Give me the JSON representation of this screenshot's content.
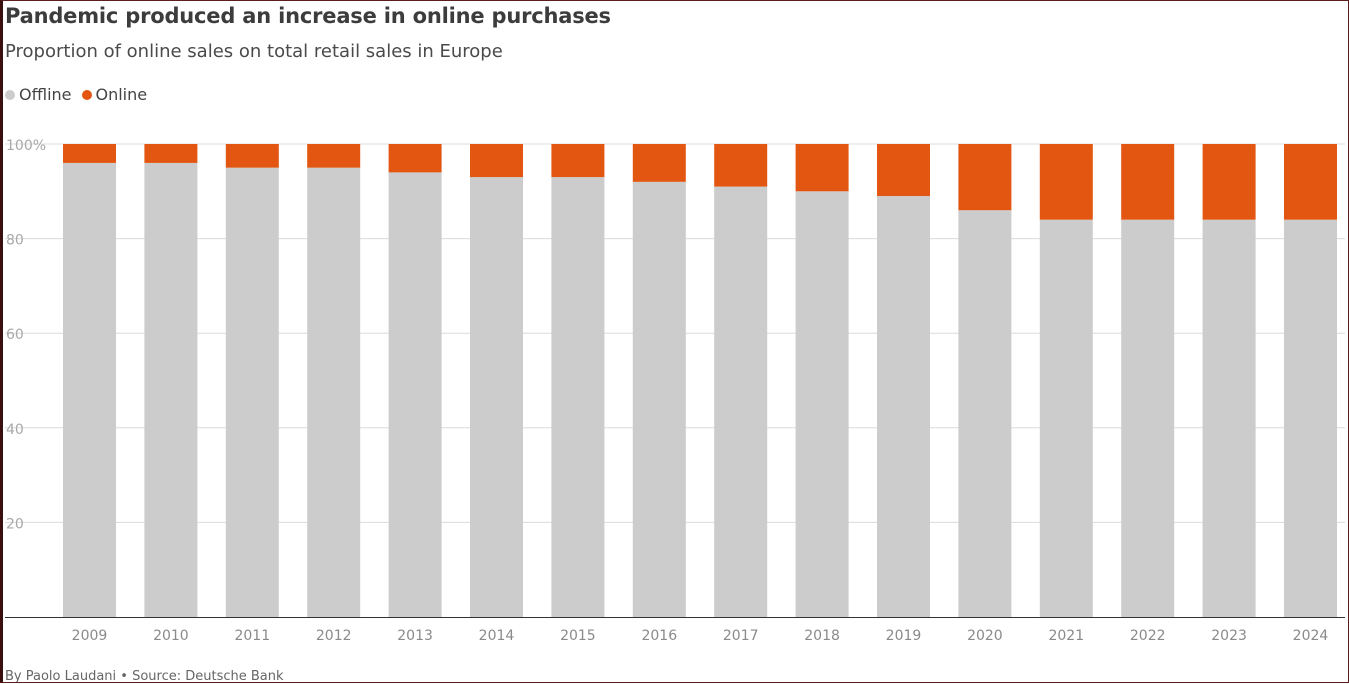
{
  "title": "Pandemic produced an increase in online purchases",
  "subtitle": "Proportion of online sales on total retail sales in Europe",
  "legend": [
    {
      "label": "Offline",
      "color": "#cccccc"
    },
    {
      "label": "Online",
      "color": "#e35612"
    }
  ],
  "source": "By Paolo Laudani • Source: Deutsche Bank",
  "chart_data": {
    "type": "bar",
    "stacked": true,
    "categories": [
      "2009",
      "2010",
      "2011",
      "2012",
      "2013",
      "2014",
      "2015",
      "2016",
      "2017",
      "2018",
      "2019",
      "2020",
      "2021",
      "2022",
      "2023",
      "2024"
    ],
    "series": [
      {
        "name": "Offline",
        "color": "#cccccc",
        "values": [
          96,
          96,
          95,
          95,
          94,
          93,
          93,
          92,
          91,
          90,
          89,
          86,
          84,
          84,
          84,
          84
        ]
      },
      {
        "name": "Online",
        "color": "#e35612",
        "values": [
          4,
          4,
          5,
          5,
          6,
          7,
          7,
          8,
          9,
          10,
          11,
          14,
          16,
          16,
          16,
          16
        ]
      }
    ],
    "ylim": [
      0,
      100
    ],
    "yticks": [
      20,
      40,
      60,
      80,
      100
    ],
    "ytick_labels": [
      "20",
      "40",
      "60",
      "80",
      "100%"
    ],
    "grid": true,
    "legend_position": "top-left"
  }
}
